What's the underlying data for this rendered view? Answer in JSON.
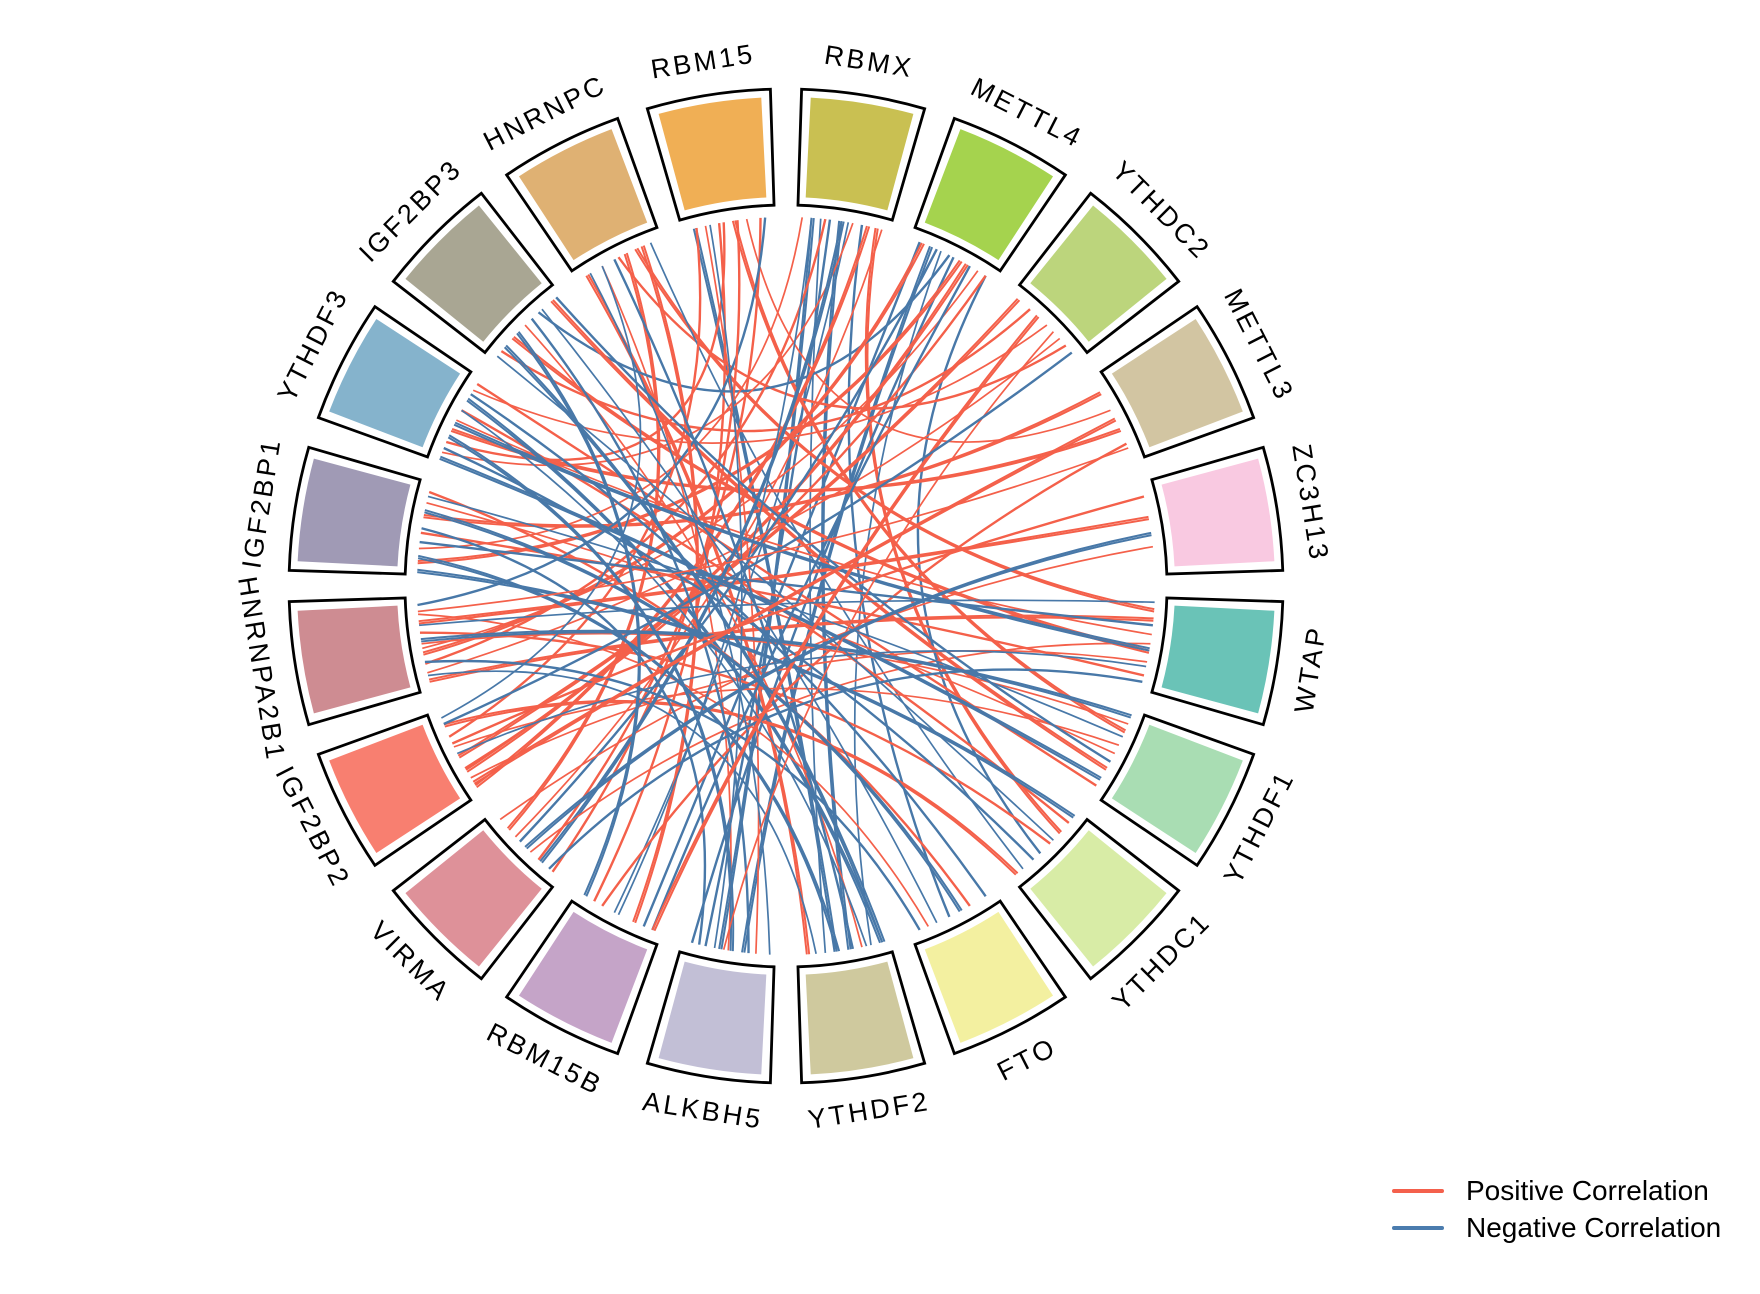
{
  "figure": {
    "background": "#ffffff"
  },
  "chart_data": {
    "type": "chord",
    "title": "",
    "legend_position": "bottom-right",
    "legend": [
      {
        "label": "Positive Correlation",
        "color": "#F4604C",
        "key": "p"
      },
      {
        "label": "Negative Correlation",
        "color": "#4B7CAE",
        "key": "n"
      }
    ],
    "link_colors": {
      "p": "#F4604A",
      "n": "#4878A8"
    },
    "sectors": [
      {
        "name": "WTAP",
        "color": "#6AC3B7"
      },
      {
        "name": "YTHDF1",
        "color": "#A9DDB3"
      },
      {
        "name": "YTHDC1",
        "color": "#D8ECA6"
      },
      {
        "name": "FTO",
        "color": "#F3F0A0"
      },
      {
        "name": "YTHDF2",
        "color": "#CFC99E"
      },
      {
        "name": "ALKBH5",
        "color": "#C2BFD6"
      },
      {
        "name": "RBM15B",
        "color": "#C5A4C8"
      },
      {
        "name": "VIRMA",
        "color": "#DE9199"
      },
      {
        "name": "IGF2BP2",
        "color": "#F87F70"
      },
      {
        "name": "HNRNPA2B1",
        "color": "#CE8C92"
      },
      {
        "name": "IGF2BP1",
        "color": "#A09AB5"
      },
      {
        "name": "YTHDF3",
        "color": "#85B3CC"
      },
      {
        "name": "IGF2BP3",
        "color": "#A9A693"
      },
      {
        "name": "HNRNPC",
        "color": "#DFB173"
      },
      {
        "name": "RBM15",
        "color": "#F0AF55"
      },
      {
        "name": "RBMX",
        "color": "#C9C052"
      },
      {
        "name": "METTL4",
        "color": "#A5D34E"
      },
      {
        "name": "YTHDC2",
        "color": "#BCD57C"
      },
      {
        "name": "METTL3",
        "color": "#D2C5A2"
      },
      {
        "name": "ZC3H13",
        "color": "#F9C9E1"
      }
    ],
    "links": [
      [
        15,
        0.15,
        5,
        0.6,
        "n"
      ],
      [
        15,
        0.25,
        4,
        0.7,
        "n"
      ],
      [
        15,
        0.35,
        5,
        0.75,
        "n"
      ],
      [
        15,
        0.45,
        4,
        0.45,
        "n"
      ],
      [
        15,
        0.55,
        6,
        0.55,
        "n"
      ],
      [
        15,
        0.7,
        3,
        0.55,
        "n"
      ],
      [
        15,
        0.85,
        2,
        0.3,
        "p"
      ],
      [
        15,
        0.92,
        7,
        0.65,
        "p"
      ],
      [
        16,
        0.1,
        6,
        0.2,
        "n"
      ],
      [
        16,
        0.22,
        5,
        0.35,
        "n"
      ],
      [
        16,
        0.35,
        4,
        0.2,
        "n"
      ],
      [
        16,
        0.5,
        5,
        0.9,
        "n"
      ],
      [
        16,
        0.65,
        8,
        0.3,
        "p"
      ],
      [
        16,
        0.8,
        9,
        0.45,
        "p"
      ],
      [
        16,
        0.9,
        2,
        0.6,
        "n"
      ],
      [
        14,
        0.12,
        4,
        0.6,
        "n"
      ],
      [
        14,
        0.25,
        5,
        0.2,
        "p"
      ],
      [
        14,
        0.4,
        6,
        0.8,
        "p"
      ],
      [
        14,
        0.55,
        1,
        0.25,
        "p"
      ],
      [
        14,
        0.7,
        18,
        0.4,
        "p"
      ],
      [
        14,
        0.85,
        7,
        0.3,
        "p"
      ],
      [
        13,
        0.1,
        4,
        0.9,
        "p"
      ],
      [
        13,
        0.3,
        5,
        0.5,
        "p"
      ],
      [
        13,
        0.5,
        17,
        0.8,
        "p"
      ],
      [
        13,
        0.7,
        0,
        0.15,
        "p"
      ],
      [
        13,
        0.88,
        2,
        0.85,
        "n"
      ],
      [
        12,
        0.12,
        17,
        0.25,
        "p"
      ],
      [
        12,
        0.3,
        0,
        0.6,
        "p"
      ],
      [
        12,
        0.5,
        4,
        0.3,
        "p"
      ],
      [
        12,
        0.7,
        16,
        0.45,
        "n"
      ],
      [
        12,
        0.88,
        1,
        0.7,
        "p"
      ],
      [
        11,
        0.1,
        15,
        0.6,
        "p"
      ],
      [
        11,
        0.22,
        14,
        0.45,
        "p"
      ],
      [
        11,
        0.35,
        18,
        0.65,
        "p"
      ],
      [
        11,
        0.48,
        0,
        0.4,
        "p"
      ],
      [
        11,
        0.6,
        2,
        0.15,
        "p"
      ],
      [
        11,
        0.72,
        4,
        0.1,
        "n"
      ],
      [
        11,
        0.85,
        17,
        0.5,
        "p"
      ],
      [
        11,
        0.93,
        1,
        0.9,
        "p"
      ],
      [
        10,
        0.12,
        16,
        0.6,
        "p"
      ],
      [
        10,
        0.28,
        15,
        0.05,
        "p"
      ],
      [
        10,
        0.45,
        0,
        0.85,
        "p"
      ],
      [
        10,
        0.62,
        18,
        0.2,
        "p"
      ],
      [
        10,
        0.78,
        1,
        0.5,
        "p"
      ],
      [
        10,
        0.9,
        3,
        0.3,
        "p"
      ],
      [
        9,
        0.08,
        0,
        0.25,
        "p"
      ],
      [
        9,
        0.18,
        17,
        0.7,
        "p"
      ],
      [
        9,
        0.28,
        15,
        0.3,
        "p"
      ],
      [
        9,
        0.38,
        16,
        0.15,
        "p"
      ],
      [
        9,
        0.5,
        1,
        0.15,
        "p"
      ],
      [
        9,
        0.62,
        2,
        0.45,
        "p"
      ],
      [
        9,
        0.72,
        19,
        0.4,
        "p"
      ],
      [
        9,
        0.82,
        3,
        0.8,
        "p"
      ],
      [
        9,
        0.92,
        14,
        0.9,
        "n"
      ],
      [
        8,
        0.08,
        15,
        0.78,
        "p"
      ],
      [
        8,
        0.2,
        0,
        0.7,
        "p"
      ],
      [
        8,
        0.32,
        16,
        0.9,
        "p"
      ],
      [
        8,
        0.45,
        17,
        0.1,
        "p"
      ],
      [
        8,
        0.58,
        1,
        0.4,
        "p"
      ],
      [
        8,
        0.7,
        14,
        0.15,
        "p"
      ],
      [
        8,
        0.82,
        2,
        0.95,
        "p"
      ],
      [
        8,
        0.92,
        13,
        0.3,
        "n"
      ],
      [
        7,
        0.1,
        14,
        0.6,
        "p"
      ],
      [
        7,
        0.25,
        15,
        0.5,
        "n"
      ],
      [
        7,
        0.42,
        0,
        0.5,
        "p"
      ],
      [
        7,
        0.58,
        16,
        0.3,
        "n"
      ],
      [
        7,
        0.75,
        13,
        0.6,
        "p"
      ],
      [
        7,
        0.9,
        19,
        0.7,
        "p"
      ],
      [
        6,
        0.1,
        16,
        0.7,
        "n"
      ],
      [
        6,
        0.3,
        13,
        0.8,
        "p"
      ],
      [
        6,
        0.5,
        15,
        0.15,
        "n"
      ],
      [
        6,
        0.7,
        18,
        0.8,
        "p"
      ],
      [
        6,
        0.9,
        12,
        0.4,
        "n"
      ],
      [
        5,
        0.05,
        13,
        0.15,
        "n"
      ],
      [
        5,
        0.28,
        12,
        0.6,
        "n"
      ],
      [
        5,
        0.45,
        11,
        0.3,
        "n"
      ],
      [
        5,
        0.65,
        14,
        0.3,
        "n"
      ],
      [
        5,
        0.82,
        10,
        0.5,
        "n"
      ],
      [
        4,
        0.05,
        12,
        0.2,
        "n"
      ],
      [
        4,
        0.25,
        11,
        0.6,
        "n"
      ],
      [
        4,
        0.4,
        13,
        0.45,
        "n"
      ],
      [
        4,
        0.55,
        10,
        0.2,
        "n"
      ],
      [
        4,
        0.8,
        9,
        0.15,
        "n"
      ],
      [
        3,
        0.1,
        11,
        0.8,
        "n"
      ],
      [
        3,
        0.4,
        10,
        0.7,
        "n"
      ],
      [
        3,
        0.7,
        12,
        0.75,
        "n"
      ],
      [
        3,
        0.9,
        9,
        0.3,
        "n"
      ],
      [
        2,
        0.05,
        10,
        0.05,
        "n"
      ],
      [
        2,
        0.4,
        12,
        0.05,
        "n"
      ],
      [
        2,
        0.7,
        11,
        0.15,
        "n"
      ],
      [
        1,
        0.05,
        9,
        0.55,
        "n"
      ],
      [
        1,
        0.3,
        10,
        0.85,
        "n"
      ],
      [
        1,
        0.6,
        12,
        0.95,
        "n"
      ],
      [
        1,
        0.8,
        11,
        0.05,
        "n"
      ],
      [
        0,
        0.05,
        9,
        0.7,
        "n"
      ],
      [
        0,
        0.3,
        10,
        0.35,
        "n"
      ],
      [
        0,
        0.55,
        11,
        0.45,
        "n"
      ],
      [
        0,
        0.75,
        8,
        0.5,
        "n"
      ],
      [
        0,
        0.92,
        7,
        0.15,
        "n"
      ],
      [
        17,
        0.35,
        6,
        0.1,
        "p"
      ],
      [
        17,
        0.6,
        5,
        0.55,
        "p"
      ],
      [
        17,
        0.9,
        8,
        0.85,
        "n"
      ],
      [
        18,
        0.5,
        8,
        0.15,
        "p"
      ],
      [
        18,
        0.85,
        9,
        0.85,
        "p"
      ],
      [
        19,
        0.15,
        8,
        0.62,
        "p"
      ],
      [
        19,
        0.55,
        7,
        0.5,
        "n"
      ]
    ]
  }
}
